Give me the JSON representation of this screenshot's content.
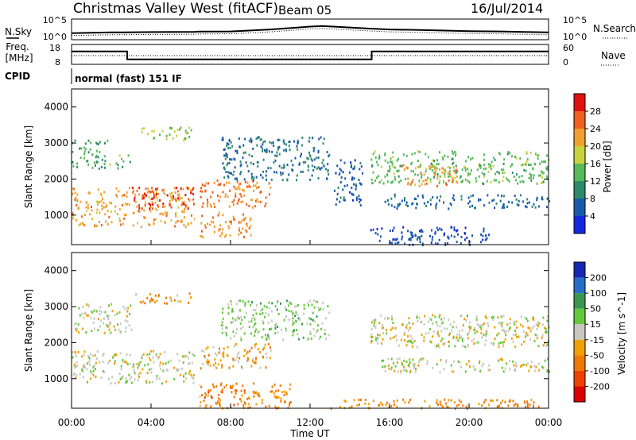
{
  "header": {
    "station": "Christmas Valley West (fitACF)",
    "beam": "Beam 05",
    "date": "16/Jul/2014"
  },
  "noise_panel": {
    "left_label": "N.Sky",
    "left_ticks": [
      "10^5",
      "10^0"
    ],
    "right_label": "N.Search",
    "right_ticks": [
      "10^5",
      "10^0"
    ]
  },
  "freq_panel": {
    "left_label_1": "Freq.",
    "left_label_2": "[MHz]",
    "left_ticks": [
      "18",
      "8"
    ],
    "right_label": "Nave",
    "right_ticks": [
      "60",
      "0"
    ]
  },
  "cpid": {
    "label": "CPID",
    "value": "normal (fast) 151 IF"
  },
  "x_axis": {
    "label": "Time UT",
    "ticks": [
      "00:00",
      "04:00",
      "08:00",
      "12:00",
      "16:00",
      "20:00",
      "00:00"
    ]
  },
  "y_axis": {
    "label": "Slant Range [km]",
    "ticks": [
      "1000",
      "2000",
      "3000",
      "4000"
    ]
  },
  "power_colorbar": {
    "label": "Power [dB]",
    "ticks": [
      "4",
      "8",
      "12",
      "16",
      "20",
      "24",
      "28"
    ],
    "colors": [
      "#1428e0",
      "#1a5aa8",
      "#2f8a6a",
      "#58b85a",
      "#c8d23c",
      "#f0a030",
      "#f06020",
      "#e01010"
    ]
  },
  "velocity_colorbar": {
    "label": "Velocity [m s^-1]",
    "ticks": [
      "200",
      "100",
      "50",
      "15",
      "-15",
      "-50",
      "-100",
      "-200"
    ],
    "colors": [
      "#1428b4",
      "#286ec8",
      "#3c9650",
      "#64c83c",
      "#c8c8c0",
      "#f0a000",
      "#f07800",
      "#f04000",
      "#dc0000"
    ]
  },
  "chart_data": [
    {
      "type": "line",
      "title": "N.Sky / N.Search",
      "yscale": "log",
      "ylim": [
        1,
        100000
      ],
      "x_hours": [
        0,
        2,
        2.6,
        4,
        6.2,
        6.4,
        8,
        10,
        12,
        12.6,
        14,
        15,
        16,
        18,
        20,
        21.5,
        22.5,
        24
      ],
      "series": [
        {
          "name": "N.Sky",
          "values": [
            40,
            60,
            60,
            70,
            80,
            90,
            100,
            300,
            1500,
            2000,
            900,
            500,
            300,
            200,
            120,
            100,
            80,
            60
          ]
        }
      ]
    },
    {
      "type": "line",
      "title": "Freq. / Nave",
      "ylim": [
        8,
        18
      ],
      "x_hours": [
        0,
        2.8,
        2.8,
        15.1,
        15.1,
        24
      ],
      "series": [
        {
          "name": "Freq.",
          "values": [
            14.5,
            14.5,
            10.5,
            10.5,
            14.5,
            14.5
          ]
        }
      ]
    },
    {
      "type": "heatmap",
      "title": "Power [dB]",
      "xlabel": "Time UT",
      "ylabel": "Slant Range [km]",
      "xlim_hours": [
        0,
        24
      ],
      "ylim_km": [
        180,
        4500
      ],
      "clim": [
        0,
        30
      ],
      "regions": [
        {
          "t0": 0.0,
          "t1": 1.8,
          "r0": 2300,
          "r1": 3100,
          "value": 12
        },
        {
          "t0": 1.8,
          "t1": 3.0,
          "r0": 2300,
          "r1": 2700,
          "value": 14
        },
        {
          "t0": 0.0,
          "t1": 6.2,
          "r0": 700,
          "r1": 1800,
          "value": 22
        },
        {
          "t0": 3.0,
          "t1": 6.2,
          "r0": 1200,
          "r1": 1800,
          "value": 28
        },
        {
          "t0": 3.2,
          "t1": 6.0,
          "r0": 3100,
          "r1": 3500,
          "value": 16
        },
        {
          "t0": 6.4,
          "t1": 10.0,
          "r0": 1200,
          "r1": 2000,
          "value": 25
        },
        {
          "t0": 6.4,
          "t1": 9.0,
          "r0": 400,
          "r1": 1100,
          "value": 23
        },
        {
          "t0": 7.5,
          "t1": 13.0,
          "r0": 2000,
          "r1": 3200,
          "value": 8
        },
        {
          "t0": 13.2,
          "t1": 14.6,
          "r0": 1300,
          "r1": 2600,
          "value": 6
        },
        {
          "t0": 15.0,
          "t1": 24.0,
          "r0": 1900,
          "r1": 2800,
          "value": 14
        },
        {
          "t0": 16.5,
          "t1": 19.5,
          "r0": 1800,
          "r1": 2400,
          "value": 22
        },
        {
          "t0": 15.5,
          "t1": 24.0,
          "r0": 1200,
          "r1": 1600,
          "value": 7
        },
        {
          "t0": 15.0,
          "t1": 21.0,
          "r0": 200,
          "r1": 700,
          "value": 5
        }
      ]
    },
    {
      "type": "heatmap",
      "title": "Velocity [m s^-1]",
      "xlabel": "Time UT",
      "ylabel": "Slant Range [km]",
      "xlim_hours": [
        0,
        24
      ],
      "ylim_km": [
        180,
        4500
      ],
      "clim": [
        -200,
        200
      ],
      "regions": [
        {
          "t0": 0.0,
          "t1": 3.0,
          "r0": 2300,
          "r1": 3100,
          "value": 0
        },
        {
          "t0": 0.0,
          "t1": 6.2,
          "r0": 900,
          "r1": 1800,
          "value": 0
        },
        {
          "t0": 3.2,
          "t1": 6.0,
          "r0": 3100,
          "r1": 3400,
          "value": -40
        },
        {
          "t0": 6.4,
          "t1": 10.0,
          "r0": 1300,
          "r1": 2000,
          "value": -30
        },
        {
          "t0": 6.4,
          "t1": 11.0,
          "r0": 200,
          "r1": 900,
          "value": -70
        },
        {
          "t0": 7.5,
          "t1": 13.0,
          "r0": 2100,
          "r1": 3200,
          "value": 20
        },
        {
          "t0": 15.0,
          "t1": 24.0,
          "r0": 1900,
          "r1": 2800,
          "value": 0
        },
        {
          "t0": 15.5,
          "t1": 24.0,
          "r0": 1200,
          "r1": 1600,
          "value": 0
        },
        {
          "t0": 13.0,
          "t1": 23.5,
          "r0": 200,
          "r1": 450,
          "value": -60
        }
      ]
    }
  ]
}
